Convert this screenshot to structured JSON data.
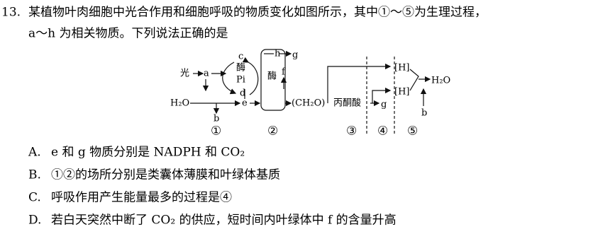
{
  "question": {
    "number": "13.",
    "stem": [
      "某植物叶肉细胞中光合作用和细胞呼吸的物质变化如图所示，其中①～⑤为生理过程，",
      "a～h 为相关物质。下列说法正确的是"
    ],
    "diagram": {
      "labels": [
        "光",
        "a",
        "c",
        "酶",
        "Pi",
        "d",
        "H₂O",
        "e",
        "b",
        "h",
        "g",
        "酶",
        "f",
        "(CH₂O)",
        "丙酮酸",
        "g",
        "[H]",
        "[H]",
        "H₂O",
        "b"
      ],
      "processes": [
        "①",
        "②",
        "③",
        "④",
        "⑤"
      ]
    },
    "options": [
      {
        "letter": "A.",
        "text": "e 和 g 物质分别是 NADPH 和 CO₂"
      },
      {
        "letter": "B.",
        "text": "①②的场所分别是类囊体薄膜和叶绿体基质"
      },
      {
        "letter": "C.",
        "text": "呼吸作用产生能量最多的过程是④"
      },
      {
        "letter": "D.",
        "text": "若白天突然中断了 CO₂ 的供应，短时间内叶绿体中 f 的含量升高"
      }
    ]
  }
}
